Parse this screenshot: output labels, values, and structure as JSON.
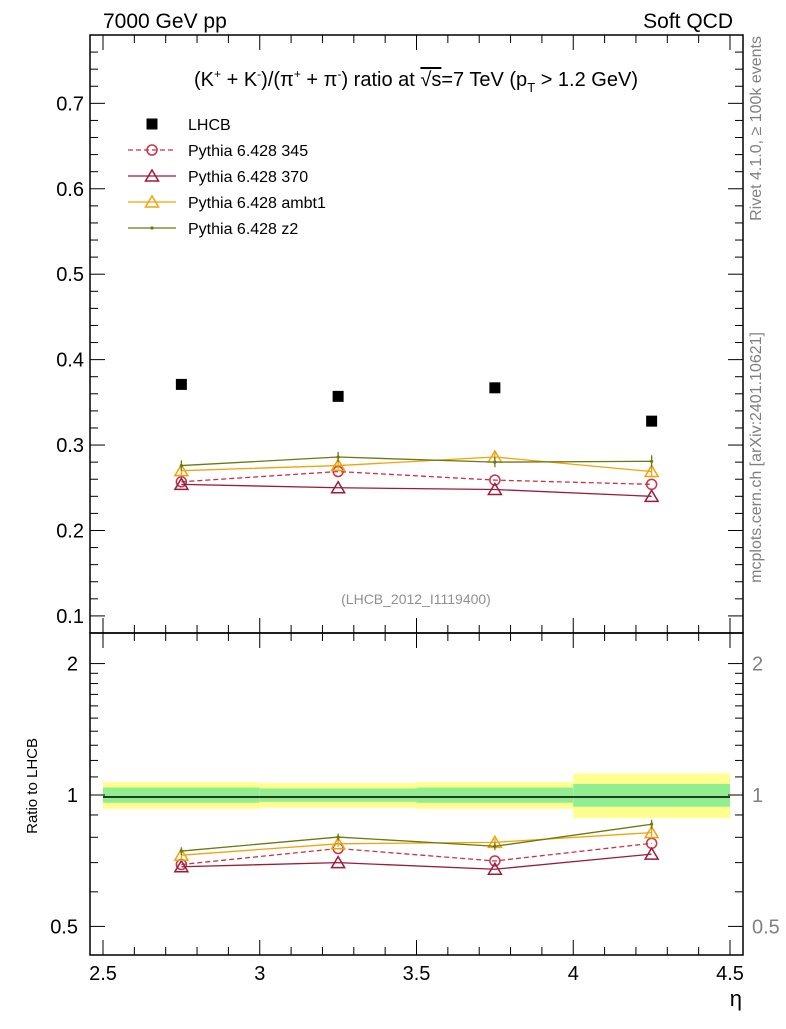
{
  "header": {
    "left": "7000 GeV pp",
    "right": "Soft QCD"
  },
  "side_labels": {
    "rivet": "Rivet 4.1.0, ≥ 100k events",
    "mcplots": "mcplots.cern.ch [arXiv:2401.10621]"
  },
  "analysis_id": "(LHCB_2012_I1119400)",
  "title_parts": {
    "t1": "(K",
    "t2": "+",
    "t3": " + K",
    "t4": "-",
    "t5": ")/(π",
    "t6": "+",
    "t7": " + π",
    "t8": "-",
    "t9": ") ratio at ",
    "t10": "√s",
    "t11": "=7 TeV (p",
    "t12": "T",
    "t13": " > 1.2 GeV)"
  },
  "chart_data": [
    {
      "type": "scatter",
      "title": "(K+ + K-)/(π+ + π-) ratio at √s=7 TeV (pT > 1.2 GeV)",
      "xlabel": "η",
      "ylabel": "",
      "xlim": [
        2.5,
        4.5
      ],
      "ylim": [
        0.08,
        0.78
      ],
      "yticks": [
        0.1,
        0.2,
        0.3,
        0.4,
        0.5,
        0.6,
        0.7
      ],
      "ytick_labels": [
        "0.1",
        "0.2",
        "0.3",
        "0.4",
        "0.5",
        "0.6",
        "0.7"
      ],
      "legend_position": "top-left",
      "series": [
        {
          "name": "LHCB",
          "color": "#000000",
          "marker": "square",
          "line": "none",
          "x": [
            2.75,
            3.25,
            3.75,
            4.25
          ],
          "y": [
            0.371,
            0.357,
            0.367,
            0.328
          ]
        },
        {
          "name": "Pythia 6.428 345",
          "color": "#c8334b",
          "marker": "circle",
          "line": "dashed",
          "x": [
            2.75,
            3.25,
            3.75,
            4.25
          ],
          "y": [
            0.257,
            0.269,
            0.259,
            0.254
          ]
        },
        {
          "name": "Pythia 6.428 370",
          "color": "#9b1b3c",
          "marker": "triangle",
          "line": "solid",
          "x": [
            2.75,
            3.25,
            3.75,
            4.25
          ],
          "y": [
            0.254,
            0.25,
            0.248,
            0.24
          ]
        },
        {
          "name": "Pythia 6.428 ambt1",
          "color": "#f0a30a",
          "marker": "triangle",
          "line": "solid",
          "x": [
            2.75,
            3.25,
            3.75,
            4.25
          ],
          "y": [
            0.27,
            0.276,
            0.286,
            0.269
          ],
          "err": [
            0.005,
            0.005,
            0.006,
            0.006
          ]
        },
        {
          "name": "Pythia 6.428 z2",
          "color": "#6b7a10",
          "marker": "dot",
          "line": "solid",
          "x": [
            2.75,
            3.25,
            3.75,
            4.25
          ],
          "y": [
            0.276,
            0.286,
            0.28,
            0.281
          ],
          "err": [
            0.006,
            0.006,
            0.006,
            0.007
          ]
        }
      ]
    },
    {
      "type": "line",
      "title": "",
      "xlabel": "η",
      "ylabel": "Ratio to LHCB",
      "xlim": [
        2.5,
        4.5
      ],
      "ylim": [
        0.43,
        2.35
      ],
      "xticks": [
        2.5,
        3,
        3.5,
        4,
        4.5
      ],
      "xtick_labels": [
        "2.5",
        "3",
        "3.5",
        "4",
        "4.5"
      ],
      "yticks": [
        0.5,
        1,
        2
      ],
      "ytick_labels": [
        "0.5",
        "1",
        "2"
      ],
      "yscale": "log",
      "bands": [
        {
          "x": [
            2.5,
            3.0
          ],
          "inner": [
            0.96,
            1.04
          ],
          "outer": [
            0.93,
            1.07
          ]
        },
        {
          "x": [
            3.0,
            3.5
          ],
          "inner": [
            0.965,
            1.035
          ],
          "outer": [
            0.935,
            1.065
          ]
        },
        {
          "x": [
            3.5,
            4.0
          ],
          "inner": [
            0.96,
            1.04
          ],
          "outer": [
            0.93,
            1.07
          ]
        },
        {
          "x": [
            4.0,
            4.5
          ],
          "inner": [
            0.94,
            1.06
          ],
          "outer": [
            0.885,
            1.12
          ]
        }
      ],
      "band_colors": {
        "inner": "#90ee90",
        "outer": "#ffff90"
      },
      "series": [
        {
          "name": "Pythia 6.428 345",
          "color": "#c8334b",
          "marker": "circle",
          "line": "dashed",
          "x": [
            2.75,
            3.25,
            3.75,
            4.25
          ],
          "y": [
            0.693,
            0.754,
            0.706,
            0.775
          ]
        },
        {
          "name": "Pythia 6.428 370",
          "color": "#9b1b3c",
          "marker": "triangle",
          "line": "solid",
          "x": [
            2.75,
            3.25,
            3.75,
            4.25
          ],
          "y": [
            0.685,
            0.7,
            0.676,
            0.732
          ]
        },
        {
          "name": "Pythia 6.428 ambt1",
          "color": "#f0a30a",
          "marker": "triangle",
          "line": "solid",
          "x": [
            2.75,
            3.25,
            3.75,
            4.25
          ],
          "y": [
            0.728,
            0.773,
            0.779,
            0.82
          ],
          "err": [
            0.013,
            0.013,
            0.015,
            0.017
          ]
        },
        {
          "name": "Pythia 6.428 z2",
          "color": "#6b7a10",
          "marker": "dot",
          "line": "solid",
          "x": [
            2.75,
            3.25,
            3.75,
            4.25
          ],
          "y": [
            0.744,
            0.801,
            0.763,
            0.857
          ],
          "err": [
            0.015,
            0.015,
            0.015,
            0.02
          ]
        }
      ]
    }
  ]
}
